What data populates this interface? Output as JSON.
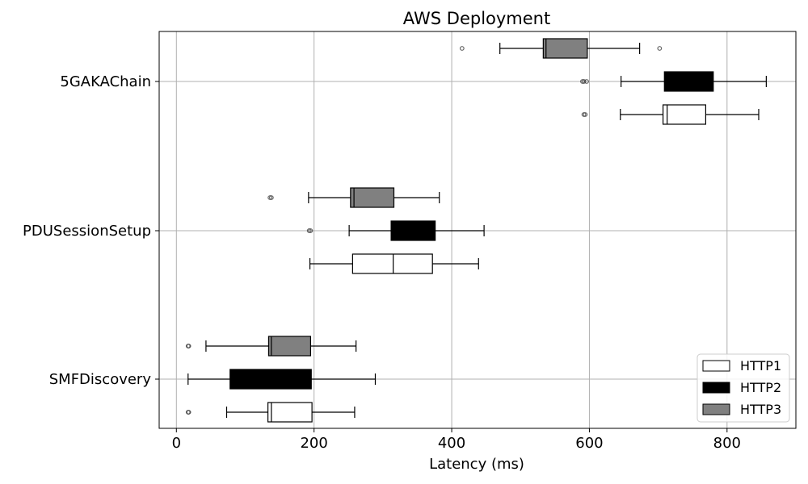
{
  "chart_data": {
    "type": "boxplot",
    "orientation": "horizontal",
    "title": "AWS Deployment",
    "xlabel": "Latency (ms)",
    "ylabel": "",
    "xlim": [
      -25,
      900
    ],
    "xticks": [
      0,
      200,
      400,
      600,
      800
    ],
    "grid": true,
    "legend_position": "bottom-right",
    "categories": [
      "SMFDiscovery",
      "PDUSessionSetup",
      "5GAKAChain"
    ],
    "series": [
      {
        "name": "HTTP1",
        "color": "#ffffff",
        "boxes": [
          {
            "whislo": 73,
            "q1": 133,
            "med": 138,
            "q3": 197,
            "whishi": 259,
            "fliers": [
              17,
              18
            ]
          },
          {
            "whislo": 194,
            "q1": 256,
            "med": 315,
            "q3": 372,
            "whishi": 439,
            "fliers": []
          },
          {
            "whislo": 645,
            "q1": 707,
            "med": 713,
            "q3": 769,
            "whishi": 846,
            "fliers": [
              592,
              594
            ]
          }
        ]
      },
      {
        "name": "HTTP2",
        "color": "#000000",
        "boxes": [
          {
            "whislo": 17,
            "q1": 78,
            "med": 80,
            "q3": 196,
            "whishi": 289,
            "fliers": []
          },
          {
            "whislo": 251,
            "q1": 312,
            "med": 314,
            "q3": 376,
            "whishi": 447,
            "fliers": [
              193,
              195
            ]
          },
          {
            "whislo": 646,
            "q1": 709,
            "med": 711,
            "q3": 780,
            "whishi": 857,
            "fliers": [
              590,
              592,
              596
            ]
          }
        ]
      },
      {
        "name": "HTTP3",
        "color": "#808080",
        "boxes": [
          {
            "whislo": 43,
            "q1": 134,
            "med": 138,
            "q3": 195,
            "whishi": 261,
            "fliers": [
              17,
              18
            ]
          },
          {
            "whislo": 192,
            "q1": 253,
            "med": 258,
            "q3": 316,
            "whishi": 382,
            "fliers": [
              136,
              138
            ]
          },
          {
            "whislo": 470,
            "q1": 533,
            "med": 537,
            "q3": 597,
            "whishi": 673,
            "fliers": [
              415,
              702
            ]
          }
        ]
      }
    ]
  }
}
